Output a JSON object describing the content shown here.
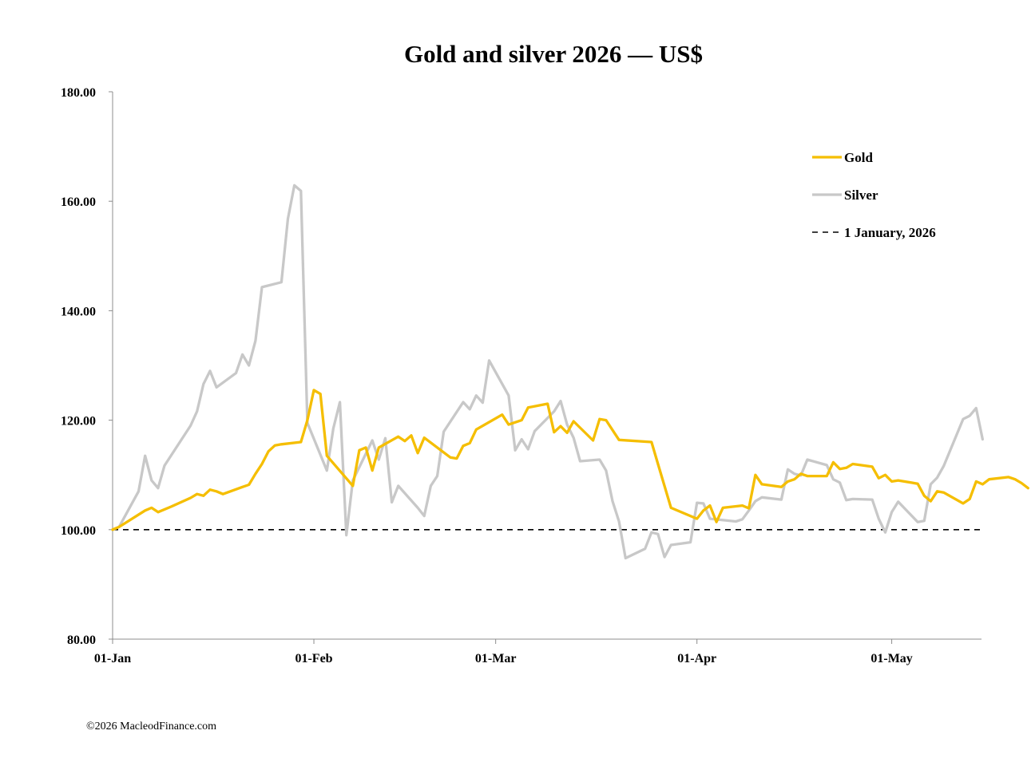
{
  "footer": "©2026 MacleodFinance.com",
  "colors": {
    "gold": "#F5BE00",
    "silver": "#C8C8C8",
    "baseline": "#000000",
    "axis": "#8c8c8c"
  },
  "chart_data": {
    "type": "line",
    "title": "Gold and silver 2026 — US$",
    "xlabel": "",
    "ylabel": "",
    "x_ticks": [
      {
        "label": "01-Jan",
        "day": 0
      },
      {
        "label": "01-Feb",
        "day": 31
      },
      {
        "label": "01-Mar",
        "day": 59
      },
      {
        "label": "01-Apr",
        "day": 90
      },
      {
        "label": "01-May",
        "day": 120
      }
    ],
    "x_range_days": [
      0,
      134
    ],
    "ylim": [
      80,
      180
    ],
    "y_ticks": [
      "80.00",
      "100.00",
      "120.00",
      "140.00",
      "160.00",
      "180.00"
    ],
    "legend_position": "top-right",
    "baseline": {
      "name": "1 January, 2026",
      "value": 100
    },
    "series": [
      {
        "name": "Gold",
        "color": "#F5BE00",
        "points": [
          [
            0,
            100
          ],
          [
            1,
            100.5
          ],
          [
            5,
            103.5
          ],
          [
            6,
            104
          ],
          [
            7,
            103.2
          ],
          [
            9,
            104.2
          ],
          [
            12,
            105.8
          ],
          [
            13,
            106.5
          ],
          [
            14,
            106.2
          ],
          [
            15,
            107.3
          ],
          [
            16,
            107
          ],
          [
            17,
            106.5
          ],
          [
            20,
            107.8
          ],
          [
            21,
            108.2
          ],
          [
            22,
            110.2
          ],
          [
            23,
            112
          ],
          [
            24,
            114.3
          ],
          [
            25,
            115.4
          ],
          [
            26,
            115.6
          ],
          [
            29,
            116
          ],
          [
            30,
            120
          ],
          [
            31,
            125.5
          ],
          [
            32,
            124.8
          ],
          [
            33,
            113.5
          ],
          [
            37,
            108
          ],
          [
            38,
            114.5
          ],
          [
            39,
            115
          ],
          [
            40,
            110.8
          ],
          [
            41,
            115
          ],
          [
            44,
            117
          ],
          [
            45,
            116.2
          ],
          [
            46,
            117.2
          ],
          [
            47,
            114
          ],
          [
            48,
            116.8
          ],
          [
            52,
            113.2
          ],
          [
            53,
            113
          ],
          [
            54,
            115.3
          ],
          [
            55,
            115.8
          ],
          [
            56,
            118.3
          ],
          [
            60,
            121
          ],
          [
            61,
            119.2
          ],
          [
            62,
            119.6
          ],
          [
            63,
            120
          ],
          [
            64,
            122.3
          ],
          [
            67,
            123
          ],
          [
            68,
            117.8
          ],
          [
            69,
            118.9
          ],
          [
            70,
            117.7
          ],
          [
            71,
            119.8
          ],
          [
            74,
            116.3
          ],
          [
            75,
            120.2
          ],
          [
            76,
            120
          ],
          [
            78,
            116.4
          ],
          [
            83,
            116
          ],
          [
            84,
            112
          ],
          [
            86,
            104
          ],
          [
            90,
            102
          ],
          [
            91,
            103.5
          ],
          [
            92,
            104.4
          ],
          [
            93,
            101.4
          ],
          [
            94,
            104
          ],
          [
            97,
            104.4
          ],
          [
            98,
            103.9
          ],
          [
            99,
            110
          ],
          [
            100,
            108.3
          ],
          [
            103,
            107.8
          ],
          [
            104,
            108.8
          ],
          [
            105,
            109.2
          ],
          [
            106,
            110.2
          ],
          [
            107,
            109.8
          ],
          [
            110,
            109.8
          ],
          [
            111,
            112.3
          ],
          [
            112,
            111.1
          ],
          [
            113,
            111.3
          ],
          [
            114,
            112
          ],
          [
            117,
            111.5
          ],
          [
            118,
            109.4
          ],
          [
            119,
            110
          ],
          [
            120,
            108.8
          ],
          [
            121,
            109
          ],
          [
            124,
            108.4
          ],
          [
            125,
            106.2
          ],
          [
            126,
            105.2
          ],
          [
            127,
            107
          ],
          [
            128,
            106.8
          ],
          [
            131,
            104.8
          ],
          [
            132,
            105.6
          ],
          [
            133,
            108.8
          ],
          [
            134,
            108.3
          ],
          [
            135,
            109.2
          ],
          [
            138,
            109.6
          ],
          [
            139,
            109.2
          ],
          [
            140,
            108.5
          ],
          [
            141,
            107.6
          ]
        ]
      },
      {
        "name": "Silver",
        "color": "#C8C8C8",
        "points": [
          [
            0,
            100
          ],
          [
            1,
            100.5
          ],
          [
            4,
            107
          ],
          [
            5,
            113.5
          ],
          [
            6,
            109
          ],
          [
            7,
            107.6
          ],
          [
            8,
            111.7
          ],
          [
            12,
            119
          ],
          [
            13,
            121.6
          ],
          [
            14,
            126.6
          ],
          [
            15,
            129
          ],
          [
            16,
            126
          ],
          [
            19,
            128.6
          ],
          [
            20,
            132
          ],
          [
            21,
            130
          ],
          [
            22,
            134.5
          ],
          [
            23,
            144.3
          ],
          [
            26,
            145.2
          ],
          [
            27,
            156.8
          ],
          [
            28,
            162.9
          ],
          [
            29,
            161.9
          ],
          [
            30,
            119.5
          ],
          [
            33,
            110.8
          ],
          [
            34,
            118.5
          ],
          [
            35,
            123.3
          ],
          [
            36,
            99
          ],
          [
            37,
            109
          ],
          [
            40,
            116.3
          ],
          [
            41,
            112.8
          ],
          [
            42,
            116.7
          ],
          [
            43,
            105
          ],
          [
            44,
            108
          ],
          [
            47,
            104
          ],
          [
            48,
            102.5
          ],
          [
            49,
            108
          ],
          [
            50,
            109.8
          ],
          [
            51,
            117.9
          ],
          [
            54,
            123.3
          ],
          [
            55,
            122
          ],
          [
            56,
            124.5
          ],
          [
            57,
            123.2
          ],
          [
            58,
            130.9
          ],
          [
            61,
            124.5
          ],
          [
            62,
            114.5
          ],
          [
            63,
            116.5
          ],
          [
            64,
            114.7
          ],
          [
            65,
            118
          ],
          [
            68,
            121.6
          ],
          [
            69,
            123.5
          ],
          [
            70,
            119.2
          ],
          [
            71,
            116.8
          ],
          [
            72,
            112.5
          ],
          [
            75,
            112.8
          ],
          [
            76,
            110.8
          ],
          [
            77,
            105.2
          ],
          [
            78,
            101.5
          ],
          [
            79,
            94.8
          ],
          [
            82,
            96.5
          ],
          [
            83,
            99.5
          ],
          [
            84,
            99.2
          ],
          [
            85,
            95
          ],
          [
            86,
            97.2
          ],
          [
            89,
            97.7
          ],
          [
            90,
            104.9
          ],
          [
            91,
            104.8
          ],
          [
            92,
            102
          ],
          [
            96,
            101.5
          ],
          [
            97,
            101.9
          ],
          [
            98,
            103.5
          ],
          [
            99,
            105.2
          ],
          [
            100,
            105.9
          ],
          [
            103,
            105.5
          ],
          [
            104,
            111
          ],
          [
            105,
            110.2
          ],
          [
            106,
            109.9
          ],
          [
            107,
            112.8
          ],
          [
            110,
            111.8
          ],
          [
            111,
            109.2
          ],
          [
            112,
            108.6
          ],
          [
            113,
            105.4
          ],
          [
            114,
            105.6
          ],
          [
            117,
            105.5
          ],
          [
            118,
            102
          ],
          [
            119,
            99.5
          ],
          [
            120,
            103.2
          ],
          [
            121,
            105.1
          ],
          [
            124,
            101.4
          ],
          [
            125,
            101.6
          ],
          [
            126,
            108.3
          ],
          [
            127,
            109.5
          ],
          [
            128,
            111.6
          ],
          [
            131,
            120.2
          ],
          [
            132,
            120.8
          ],
          [
            133,
            122.2
          ],
          [
            134,
            116.5
          ]
        ]
      }
    ]
  }
}
